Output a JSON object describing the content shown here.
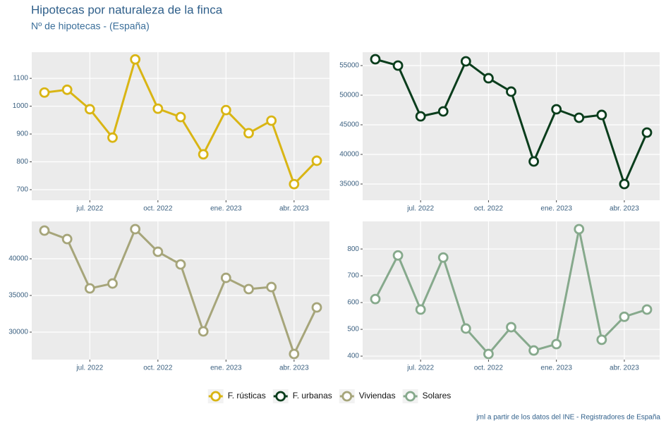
{
  "title": "Hipotecas por naturaleza de la finca",
  "subtitle": "Nº de hipotecas - (España)",
  "caption": "jml a partir de los datos del INE - Registradores de España",
  "legend": "bottom",
  "chart_data": [
    {
      "type": "line",
      "x": [
        "2022-05",
        "2022-06",
        "2022-07",
        "2022-08",
        "2022-09",
        "2022-10",
        "2022-11",
        "2022-12",
        "2023-01",
        "2023-02",
        "2023-03",
        "2023-04",
        "2023-05"
      ],
      "xlim": [
        "2022-05",
        "2023-05"
      ],
      "xticks": [
        {
          "value": "2022-07",
          "label": "jul. 2022"
        },
        {
          "value": "2022-10",
          "label": "oct. 2022"
        },
        {
          "value": "2023-01",
          "label": "ene. 2023"
        },
        {
          "value": "2023-04",
          "label": "abr. 2023"
        }
      ],
      "ylim": [
        662,
        1194
      ],
      "yticks": [
        700,
        800,
        900,
        1000,
        1100
      ],
      "grid": true,
      "series": [
        {
          "name": "F. rústicas",
          "color": "#d9b514",
          "values": [
            1049,
            1059,
            989,
            887,
            1168,
            991,
            961,
            827,
            986,
            903,
            948,
            720,
            804
          ]
        }
      ]
    },
    {
      "type": "line",
      "x": [
        "2022-05",
        "2022-06",
        "2022-07",
        "2022-08",
        "2022-09",
        "2022-10",
        "2022-11",
        "2022-12",
        "2023-01",
        "2023-02",
        "2023-03",
        "2023-04",
        "2023-05"
      ],
      "xlim": [
        "2022-05",
        "2023-05"
      ],
      "xticks": [
        {
          "value": "2022-07",
          "label": "jul. 2022"
        },
        {
          "value": "2022-10",
          "label": "oct. 2022"
        },
        {
          "value": "2023-01",
          "label": "ene. 2023"
        },
        {
          "value": "2023-04",
          "label": "abr. 2023"
        }
      ],
      "ylim": [
        32260,
        57260
      ],
      "yticks": [
        35000,
        40000,
        45000,
        50000,
        55000
      ],
      "grid": true,
      "series": [
        {
          "name": "F. urbanas",
          "color": "#0a3d1c",
          "values": [
            56070,
            55000,
            46430,
            47260,
            55710,
            52860,
            50600,
            38810,
            47620,
            46190,
            46670,
            35000,
            43690
          ]
        }
      ]
    },
    {
      "type": "line",
      "x": [
        "2022-05",
        "2022-06",
        "2022-07",
        "2022-08",
        "2022-09",
        "2022-10",
        "2022-11",
        "2022-12",
        "2023-01",
        "2023-02",
        "2023-03",
        "2023-04",
        "2023-05"
      ],
      "xlim": [
        "2022-05",
        "2023-05"
      ],
      "xticks": [
        {
          "value": "2022-07",
          "label": "jul. 2022"
        },
        {
          "value": "2022-10",
          "label": "oct. 2022"
        },
        {
          "value": "2023-01",
          "label": "ene. 2023"
        },
        {
          "value": "2023-04",
          "label": "abr. 2023"
        }
      ],
      "ylim": [
        26250,
        45100
      ],
      "yticks": [
        30000,
        35000,
        40000
      ],
      "grid": true,
      "series": [
        {
          "name": "Viviendas",
          "color": "#a6a57a",
          "values": [
            43850,
            42690,
            35960,
            36630,
            44040,
            40960,
            39230,
            30100,
            37400,
            35870,
            36150,
            27020,
            33370
          ]
        }
      ]
    },
    {
      "type": "line",
      "x": [
        "2022-05",
        "2022-06",
        "2022-07",
        "2022-08",
        "2022-09",
        "2022-10",
        "2022-11",
        "2022-12",
        "2023-01",
        "2023-02",
        "2023-03",
        "2023-04",
        "2023-05"
      ],
      "xlim": [
        "2022-05",
        "2023-05"
      ],
      "xticks": [
        {
          "value": "2022-07",
          "label": "jul. 2022"
        },
        {
          "value": "2022-10",
          "label": "oct. 2022"
        },
        {
          "value": "2023-01",
          "label": "ene. 2023"
        },
        {
          "value": "2023-04",
          "label": "abr. 2023"
        }
      ],
      "ylim": [
        387,
        903
      ],
      "yticks": [
        400,
        500,
        600,
        700,
        800
      ],
      "grid": true,
      "series": [
        {
          "name": "Solares",
          "color": "#86a98c",
          "values": [
            613,
            776,
            574,
            768,
            503,
            408,
            508,
            421,
            445,
            874,
            461,
            547,
            574
          ]
        }
      ]
    }
  ]
}
